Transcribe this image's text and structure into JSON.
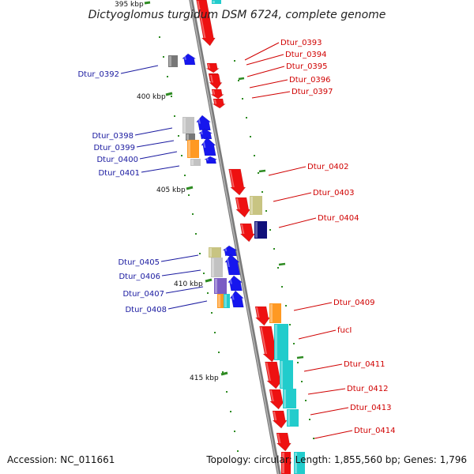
{
  "title": "Dictyoglomus turgidum DSM 6724, complete genome",
  "footer": {
    "accession": "Accession: NC_011661",
    "summary": "Topology: circular; Length: 1,855,560 bp; Genes: 1,796"
  },
  "colors": {
    "backbone": "#8c8c8c",
    "forward_label": "#d00000",
    "reverse_label": "#1a1aa0",
    "tick": "#2e8b22",
    "red": "#ee1111",
    "blue": "#1616ee",
    "cyan": "#22cccc",
    "orange": "#ff9922",
    "khaki": "#c8c482",
    "navy": "#10107a",
    "gray": "#c2c2c2",
    "darkgray": "#777777",
    "purple": "#7a5cc4"
  },
  "ticks": [
    {
      "label": "395 kbp"
    },
    {
      "label": "400 kbp"
    },
    {
      "label": "405 kbp"
    },
    {
      "label": "410 kbp"
    },
    {
      "label": "415 kbp"
    }
  ],
  "forward_genes": [
    {
      "label": "Dtur_0393"
    },
    {
      "label": "Dtur_0394"
    },
    {
      "label": "Dtur_0395"
    },
    {
      "label": "Dtur_0396"
    },
    {
      "label": "Dtur_0397"
    },
    {
      "label": "Dtur_0402"
    },
    {
      "label": "Dtur_0403"
    },
    {
      "label": "Dtur_0404"
    },
    {
      "label": "Dtur_0409"
    },
    {
      "label": "fucI"
    },
    {
      "label": "Dtur_0411"
    },
    {
      "label": "Dtur_0412"
    },
    {
      "label": "Dtur_0413"
    },
    {
      "label": "Dtur_0414"
    }
  ],
  "reverse_genes": [
    {
      "label": "Dtur_0392"
    },
    {
      "label": "Dtur_0398"
    },
    {
      "label": "Dtur_0399"
    },
    {
      "label": "Dtur_0400"
    },
    {
      "label": "Dtur_0401"
    },
    {
      "label": "Dtur_0405"
    },
    {
      "label": "Dtur_0406"
    },
    {
      "label": "Dtur_0407"
    },
    {
      "label": "Dtur_0408"
    }
  ]
}
